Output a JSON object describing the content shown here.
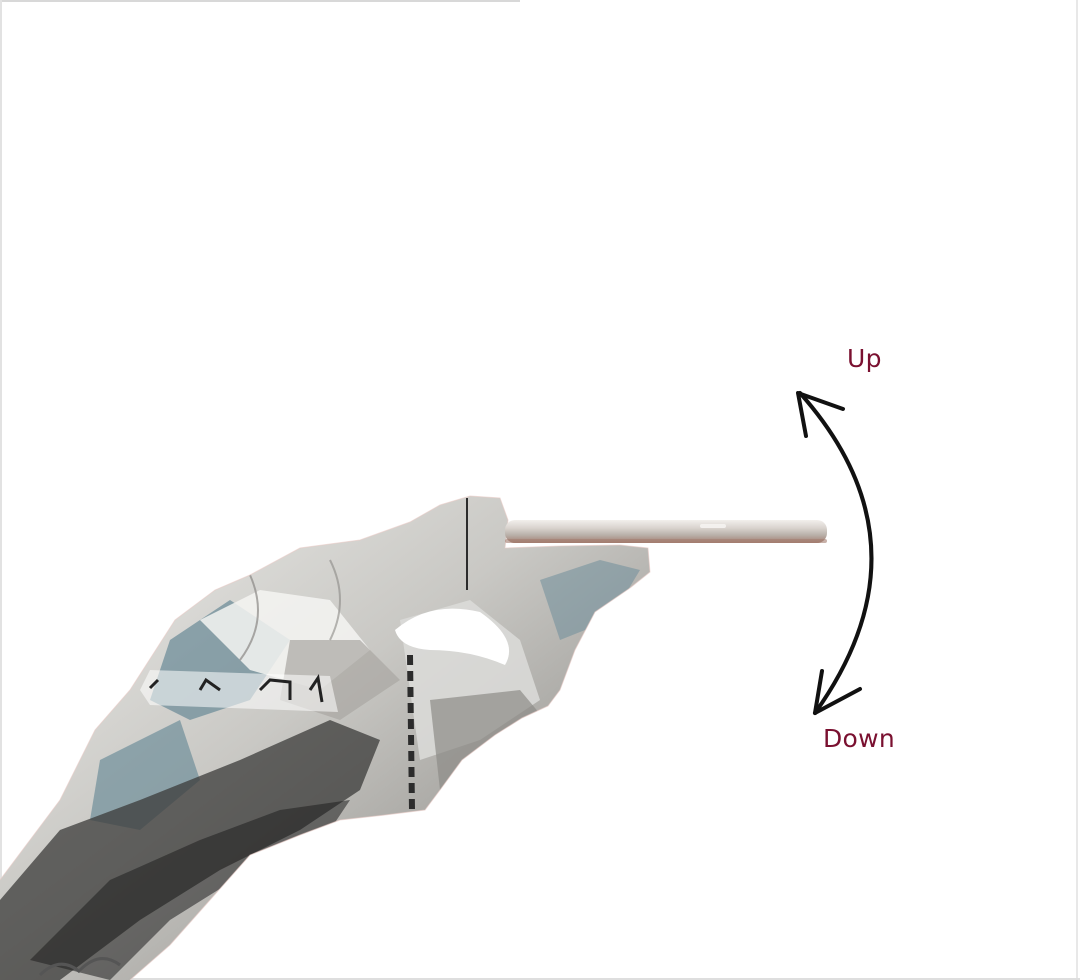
{
  "diagram": {
    "labels": {
      "up": "Up",
      "down": "Down"
    },
    "colors": {
      "label": "#7a1030",
      "arrow": "#111111",
      "phone_body": "#c9c2bd",
      "phone_edge": "#a37d6f",
      "hand_light": "#e9e9e6",
      "hand_mid": "#9c9a96",
      "hand_dark": "#2a2a2a",
      "hand_accent": "#5f7f8c",
      "background": "#ffffff"
    },
    "icons": {
      "hand": "hand-holding-phone-icon",
      "phone": "phone-side-view-icon",
      "arrow": "double-headed-curved-arrow-icon"
    }
  }
}
